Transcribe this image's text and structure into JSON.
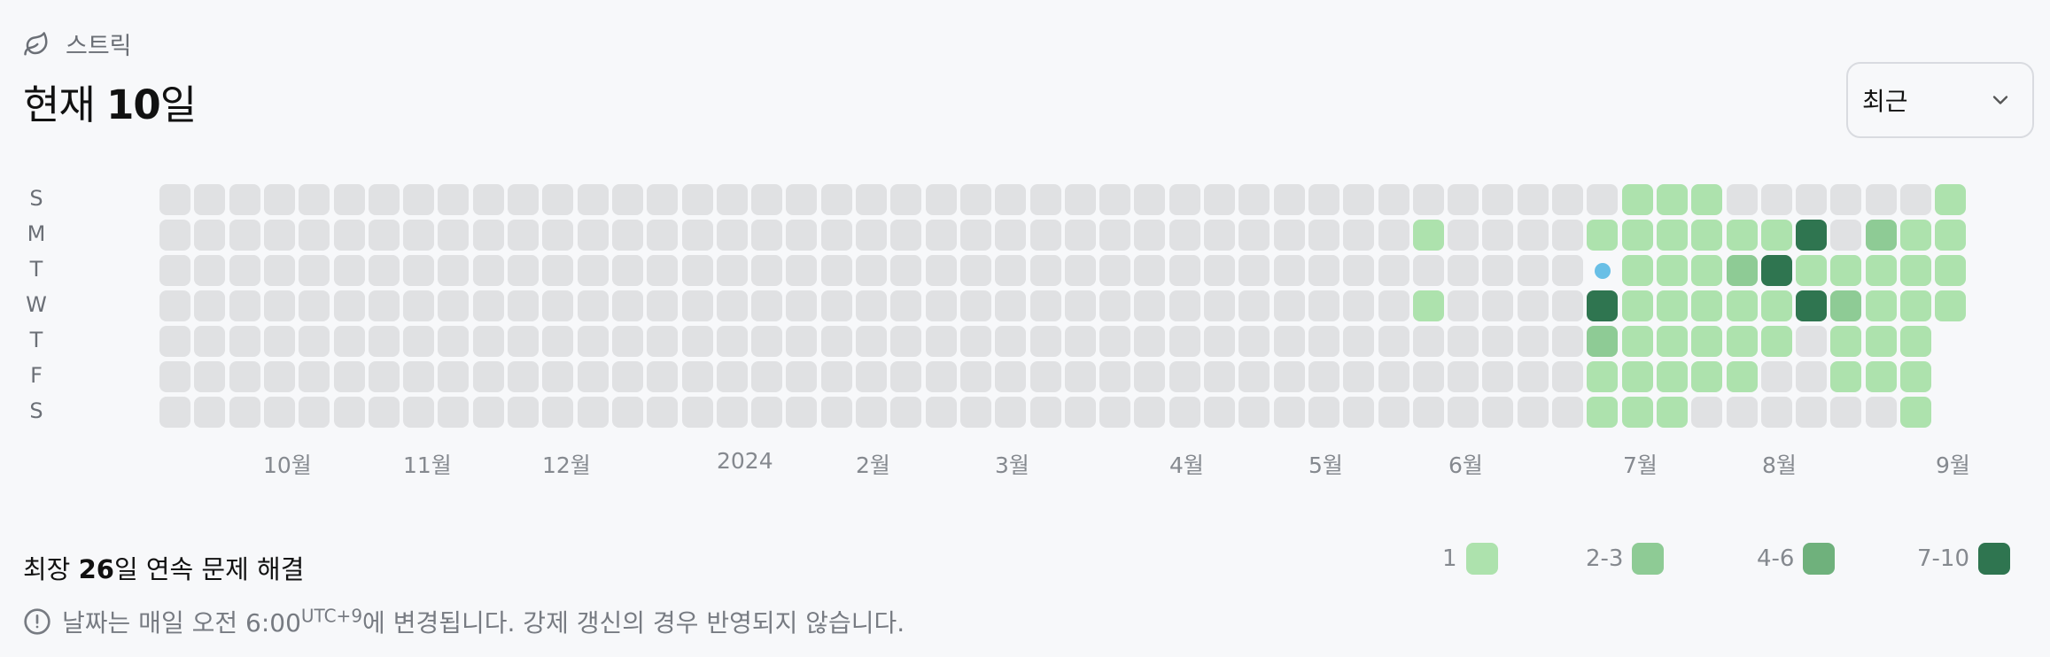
{
  "header": {
    "label": "스트릭",
    "icon": "leaf-icon"
  },
  "title": {
    "prefix": "현재 ",
    "value": "10",
    "suffix": "일"
  },
  "select": {
    "value": "최근",
    "icon": "chevron-down-icon"
  },
  "day_labels": [
    "S",
    "M",
    "T",
    "W",
    "T",
    "F",
    "S"
  ],
  "months": [
    "10월",
    "11월",
    "12월",
    "2024",
    "2월",
    "3월",
    "4월",
    "5월",
    "6월",
    "7월",
    "8월",
    "9월"
  ],
  "colors": {
    "empty": "#e0e1e3",
    "l1": "#ade2ad",
    "l2": "#8ecb95",
    "l3": "#6fb17c",
    "l4": "#2f7550",
    "today": "#69bfe6"
  },
  "heatmap": {
    "start_date": "2023-09-10",
    "today": "2024-06-25",
    "levels": [
      [
        0,
        0,
        0,
        0,
        0,
        0,
        0
      ],
      [
        0,
        0,
        0,
        0,
        0,
        0,
        0
      ],
      [
        0,
        0,
        0,
        0,
        0,
        0,
        0
      ],
      [
        0,
        0,
        0,
        0,
        0,
        0,
        0
      ],
      [
        0,
        0,
        0,
        0,
        0,
        0,
        0
      ],
      [
        0,
        0,
        0,
        0,
        0,
        0,
        0
      ],
      [
        0,
        0,
        0,
        0,
        0,
        0,
        0
      ],
      [
        0,
        0,
        0,
        0,
        0,
        0,
        0
      ],
      [
        0,
        0,
        0,
        0,
        0,
        0,
        0
      ],
      [
        0,
        0,
        0,
        0,
        0,
        0,
        0
      ],
      [
        0,
        0,
        0,
        0,
        0,
        0,
        0
      ],
      [
        0,
        0,
        0,
        0,
        0,
        0,
        0
      ],
      [
        0,
        0,
        0,
        0,
        0,
        0,
        0
      ],
      [
        0,
        0,
        0,
        0,
        0,
        0,
        0
      ],
      [
        0,
        0,
        0,
        0,
        0,
        0,
        0
      ],
      [
        0,
        0,
        0,
        0,
        0,
        0,
        0
      ],
      [
        0,
        0,
        0,
        0,
        0,
        0,
        0
      ],
      [
        0,
        0,
        0,
        0,
        0,
        0,
        0
      ],
      [
        0,
        0,
        0,
        0,
        0,
        0,
        0
      ],
      [
        0,
        0,
        0,
        0,
        0,
        0,
        0
      ],
      [
        0,
        0,
        0,
        0,
        0,
        0,
        0
      ],
      [
        0,
        0,
        0,
        0,
        0,
        0,
        0
      ],
      [
        0,
        0,
        0,
        0,
        0,
        0,
        0
      ],
      [
        0,
        0,
        0,
        0,
        0,
        0,
        0
      ],
      [
        0,
        0,
        0,
        0,
        0,
        0,
        0
      ],
      [
        0,
        0,
        0,
        0,
        0,
        0,
        0
      ],
      [
        0,
        0,
        0,
        0,
        0,
        0,
        0
      ],
      [
        0,
        0,
        0,
        0,
        0,
        0,
        0
      ],
      [
        0,
        0,
        0,
        0,
        0,
        0,
        0
      ],
      [
        0,
        0,
        0,
        0,
        0,
        0,
        0
      ],
      [
        0,
        0,
        0,
        0,
        0,
        0,
        0
      ],
      [
        0,
        0,
        0,
        0,
        0,
        0,
        0
      ],
      [
        0,
        0,
        0,
        0,
        0,
        0,
        0
      ],
      [
        0,
        0,
        0,
        0,
        0,
        0,
        0
      ],
      [
        0,
        0,
        0,
        0,
        0,
        0,
        0
      ],
      [
        0,
        0,
        0,
        0,
        0,
        0,
        0
      ],
      [
        0,
        1,
        0,
        1,
        0,
        0,
        0
      ],
      [
        0,
        0,
        0,
        0,
        0,
        0,
        0
      ],
      [
        0,
        0,
        0,
        0,
        0,
        0,
        0
      ],
      [
        0,
        0,
        0,
        0,
        0,
        0,
        0
      ],
      [
        0,
        0,
        0,
        0,
        0,
        0,
        0
      ],
      [
        0,
        1,
        4,
        4,
        2,
        1,
        1
      ],
      [
        1,
        1,
        1,
        1,
        1,
        1,
        1
      ],
      [
        1,
        1,
        1,
        1,
        1,
        1,
        1
      ],
      [
        1,
        1,
        1,
        1,
        1,
        1,
        0
      ],
      [
        0,
        1,
        2,
        1,
        1,
        1,
        0
      ],
      [
        0,
        1,
        4,
        1,
        1,
        0,
        0
      ],
      [
        0,
        4,
        1,
        4,
        0,
        0,
        0
      ],
      [
        0,
        0,
        1,
        2,
        1,
        1,
        0
      ],
      [
        0,
        2,
        1,
        1,
        1,
        1,
        0
      ],
      [
        0,
        1,
        1,
        1,
        1,
        1,
        1
      ],
      [
        1,
        1,
        1,
        1
      ]
    ]
  },
  "longest": {
    "prefix": "최장 ",
    "value": "26",
    "suffix": "일 연속 문제 해결"
  },
  "legend": [
    {
      "label": "1",
      "color": "#ade2ad"
    },
    {
      "label": "2-3",
      "color": "#8ecb95"
    },
    {
      "label": "4-6",
      "color": "#6fb17c"
    },
    {
      "label": "7-10",
      "color": "#2f7550"
    }
  ],
  "note": {
    "text": "날짜는 매일 오전 6:00",
    "sup": "UTC+9",
    "tail": "에 변경됩니다. 강제 갱신의 경우 반영되지 않습니다.",
    "icon": "alert-circle-icon"
  }
}
